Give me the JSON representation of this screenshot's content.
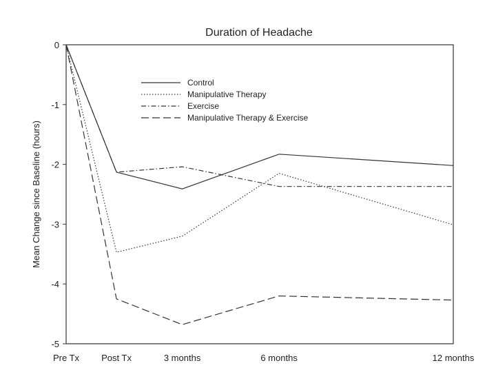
{
  "chart_data": {
    "type": "line",
    "title": "Duration of Headache",
    "xlabel": "",
    "ylabel": "Mean Change since Baseline (hours)",
    "x_positions": [
      0,
      1.3,
      3,
      5.5,
      10
    ],
    "categories": [
      "Pre Tx",
      "Post Tx",
      "3 months",
      "6 months",
      "12 months"
    ],
    "ylim": [
      -5,
      0
    ],
    "yticks": [
      0,
      -1,
      -2,
      -3,
      -4,
      -5
    ],
    "xlim": [
      0,
      10
    ],
    "grid": false,
    "legend_position": "top-center",
    "series": [
      {
        "name": "Control",
        "dash": "solid",
        "values": [
          0,
          -2.13,
          -2.41,
          -1.83,
          -2.02
        ]
      },
      {
        "name": "Manipulative Therapy",
        "dash": "dotted",
        "values": [
          0,
          -3.47,
          -3.2,
          -2.15,
          -3.01
        ]
      },
      {
        "name": "Exercise",
        "dash": "dashdot",
        "values": [
          0,
          -2.13,
          -2.04,
          -2.37,
          -2.37
        ]
      },
      {
        "name": "Manipulative Therapy & Exercise",
        "dash": "dashed",
        "values": [
          0,
          -4.25,
          -4.68,
          -4.2,
          -4.27
        ]
      }
    ]
  }
}
